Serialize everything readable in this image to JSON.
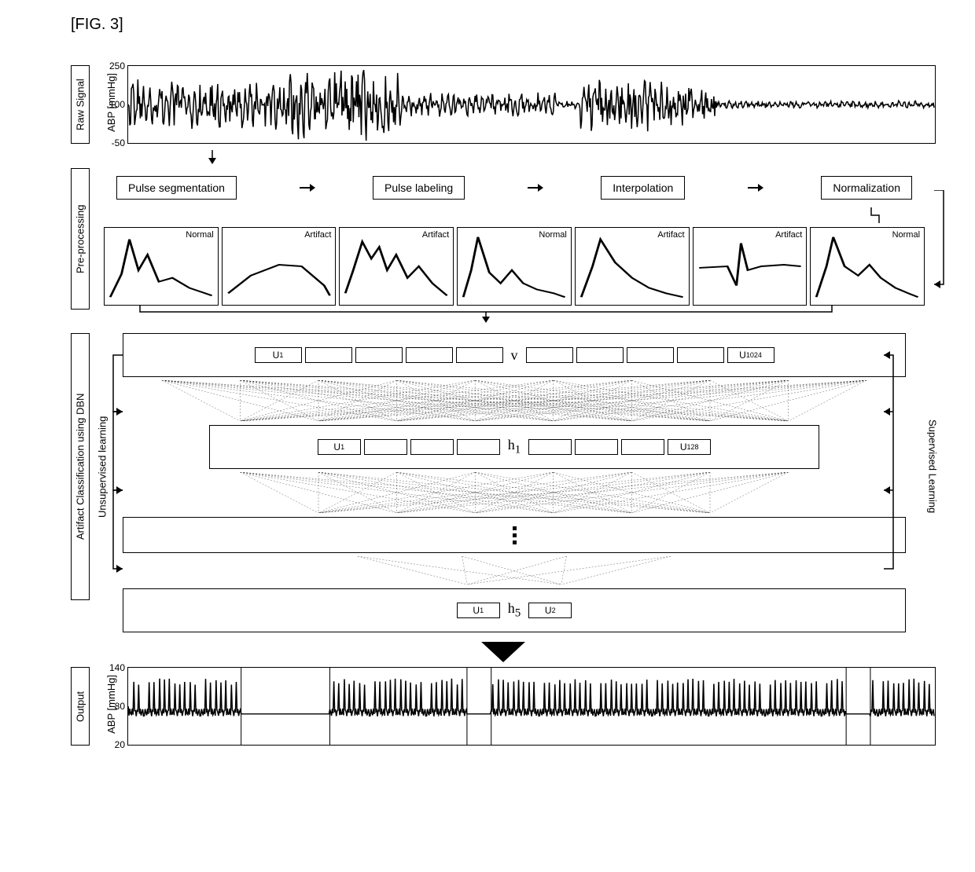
{
  "figure_label": "[FIG. 3]",
  "sections": {
    "raw_signal": {
      "label": "Raw Signal",
      "y_axis": "ABP [mmHg]",
      "yticks": [
        250,
        100,
        -50
      ],
      "ylim": [
        -50,
        250
      ]
    },
    "preprocessing": {
      "label": "Pre-processing",
      "flow_steps": [
        "Pulse segmentation",
        "Pulse labeling",
        "Interpolation",
        "Normalization"
      ],
      "pulse_labels": [
        "Normal",
        "Artifact",
        "Artifact",
        "Normal",
        "Artifact",
        "Artifact",
        "Normal"
      ]
    },
    "dbn": {
      "label": "Artifact Classification using DBN",
      "left_label": "Unsupervised learning",
      "right_label": "Supervised Learning",
      "layers": [
        {
          "name": "v",
          "first": "U",
          "first_sub": "1",
          "last": "U",
          "last_sub": "1024",
          "node_count": 10,
          "width_pct": 100
        },
        {
          "name": "h",
          "name_sub": "1",
          "first": "U",
          "first_sub": "1",
          "last": "U",
          "last_sub": "128",
          "node_count": 8,
          "width_pct": 80
        },
        {
          "name": "",
          "node_count": 0,
          "width_pct": 100
        },
        {
          "name": "h",
          "name_sub": "5",
          "first": "U",
          "first_sub": "1",
          "last": "U",
          "last_sub": "2",
          "node_count": 2,
          "width_pct": 100
        }
      ]
    },
    "output": {
      "label": "Output",
      "y_axis": "ABP [mmHg]",
      "yticks": [
        140,
        80,
        20
      ],
      "ylim": [
        20,
        140
      ]
    }
  },
  "colors": {
    "stroke": "#000000",
    "background": "#ffffff"
  }
}
